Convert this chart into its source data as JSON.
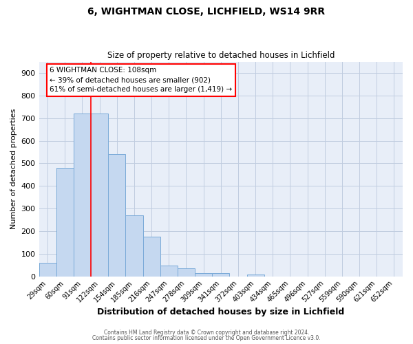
{
  "title1": "6, WIGHTMAN CLOSE, LICHFIELD, WS14 9RR",
  "title2": "Size of property relative to detached houses in Lichfield",
  "xlabel": "Distribution of detached houses by size in Lichfield",
  "ylabel": "Number of detached properties",
  "bar_labels": [
    "29sqm",
    "60sqm",
    "91sqm",
    "122sqm",
    "154sqm",
    "185sqm",
    "216sqm",
    "247sqm",
    "278sqm",
    "309sqm",
    "341sqm",
    "372sqm",
    "403sqm",
    "434sqm",
    "465sqm",
    "496sqm",
    "527sqm",
    "559sqm",
    "590sqm",
    "621sqm",
    "652sqm"
  ],
  "bar_values": [
    60,
    480,
    720,
    720,
    540,
    270,
    175,
    48,
    35,
    15,
    15,
    0,
    8,
    0,
    0,
    0,
    0,
    0,
    0,
    0,
    0
  ],
  "bar_color": "#c5d8f0",
  "bar_edge_color": "#7aaad8",
  "ylim": [
    0,
    950
  ],
  "yticks": [
    0,
    100,
    200,
    300,
    400,
    500,
    600,
    700,
    800,
    900
  ],
  "vline_color": "red",
  "vline_pos": 2.5,
  "annotation_text": "6 WIGHTMAN CLOSE: 108sqm\n← 39% of detached houses are smaller (902)\n61% of semi-detached houses are larger (1,419) →",
  "annotation_box_color": "white",
  "annotation_box_edge": "red",
  "footer1": "Contains HM Land Registry data © Crown copyright and database right 2024.",
  "footer2": "Contains public sector information licensed under the Open Government Licence v3.0.",
  "bg_color": "#e8eef8",
  "grid_color": "#c0cce0"
}
